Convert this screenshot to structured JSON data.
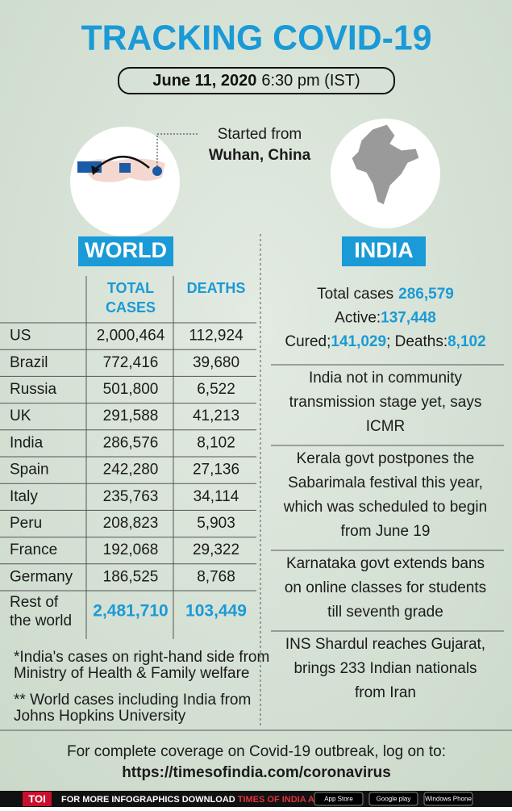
{
  "header": {
    "title": "TRACKING COVID-19",
    "date": "June 11, 2020",
    "time": "6:30 pm (IST)"
  },
  "origin": {
    "line1": "Started from",
    "line2": "Wuhan, China"
  },
  "world": {
    "label": "WORLD",
    "headers": {
      "total": [
        "TOTAL",
        "CASES"
      ],
      "deaths": "DEATHS"
    },
    "rows": [
      [
        "US",
        "2,000,464",
        "112,924"
      ],
      [
        "Brazil",
        "772,416",
        "39,680"
      ],
      [
        "Russia",
        "501,800",
        "6,522"
      ],
      [
        "UK",
        "291,588",
        "41,213"
      ],
      [
        "India",
        "286,576",
        "8,102"
      ],
      [
        "Spain",
        "242,280",
        "27,136"
      ],
      [
        "Italy",
        "235,763",
        "34,114"
      ],
      [
        "Peru",
        "208,823",
        "5,903"
      ],
      [
        "France",
        "192,068",
        "29,322"
      ],
      [
        "Germany",
        "186,525",
        "8,768"
      ]
    ],
    "rest": {
      "name": [
        "Rest of",
        "the world"
      ],
      "total": "2,481,710",
      "deaths": "103,449"
    },
    "notes": [
      [
        "*India's cases on right-hand side from",
        "Ministry of Health & Family welfare"
      ],
      [
        "** World cases including India from",
        "Johns Hopkins University"
      ]
    ]
  },
  "india": {
    "label": "INDIA",
    "stats": [
      [
        {
          "label": "Total cases",
          "value": "286,579"
        }
      ],
      [
        {
          "label": "Active:",
          "value": "137,448"
        }
      ],
      [
        {
          "label": "Cured;",
          "value": "141,029"
        },
        {
          "label": "; Deaths:",
          "value": "8,102"
        }
      ]
    ],
    "news": [
      [
        "India not in community",
        "transmission stage yet, says",
        "ICMR"
      ],
      [
        "Kerala govt postpones the",
        "Sabarimala festival this year,",
        "which was scheduled to begin",
        "from June 19"
      ],
      [
        "Karnataka govt extends bans",
        "on online classes for students",
        "till seventh grade"
      ],
      [
        "INS Shardul reaches Gujarat,",
        "brings 233 Indian nationals",
        "from Iran"
      ]
    ]
  },
  "footer": {
    "text": "For complete coverage on Covid-19 outbreak, log on to:",
    "url": "https://timesofindia.com/coronavirus"
  },
  "bar": {
    "brand": "TOI",
    "text": "FOR MORE INFOGRAPHICS DOWNLOAD",
    "app": "TIMES OF INDIA APP",
    "badges": [
      "App Store",
      "Google play",
      "Windows Phone"
    ]
  }
}
